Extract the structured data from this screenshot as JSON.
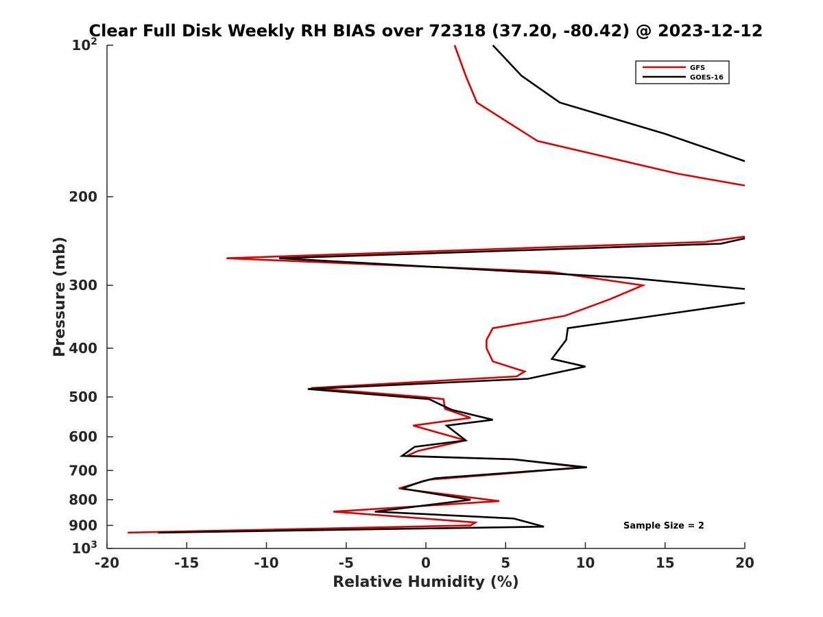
{
  "chart_data": {
    "type": "line",
    "title": "Clear Full Disk Weekly RH BIAS over 72318 (37.20, -80.42) @ 2023-12-12",
    "xlabel": "Relative Humidity (%)",
    "ylabel": "Pressure (mb)",
    "xlim": [
      -20,
      20
    ],
    "ylim": [
      1000,
      100
    ],
    "yscale": "log",
    "grid": false,
    "legend_position": "top-right",
    "x_ticks": [
      "-20",
      "-15",
      "-10",
      "-5",
      "0",
      "5",
      "10",
      "15",
      "20"
    ],
    "y_ticks": [
      {
        "value": 100,
        "label": "10",
        "sup": "2"
      },
      {
        "value": 200,
        "label": "200"
      },
      {
        "value": 300,
        "label": "300"
      },
      {
        "value": 400,
        "label": "400"
      },
      {
        "value": 500,
        "label": "500"
      },
      {
        "value": 600,
        "label": "600"
      },
      {
        "value": 700,
        "label": "700"
      },
      {
        "value": 800,
        "label": "800"
      },
      {
        "value": 900,
        "label": "900"
      },
      {
        "value": 1000,
        "label": "10",
        "sup": "3"
      }
    ],
    "annotation": "Sample Size = 2",
    "series": [
      {
        "name": "GFS",
        "color": "#e00000",
        "points": [
          [
            1.8,
            100
          ],
          [
            2.5,
            115
          ],
          [
            3.2,
            130
          ],
          [
            7.0,
            155
          ],
          [
            15.8,
            180
          ],
          [
            20,
            190
          ],
          [
            null,
            null
          ],
          [
            20,
            240
          ],
          [
            17.5,
            246
          ],
          [
            -12.5,
            265
          ],
          [
            7.8,
            282
          ],
          [
            13.6,
            300
          ],
          [
            11.5,
            320
          ],
          [
            8.7,
            345
          ],
          [
            4.2,
            365
          ],
          [
            3.8,
            385
          ],
          [
            3.8,
            400
          ],
          [
            4.2,
            425
          ],
          [
            6.2,
            445
          ],
          [
            5.7,
            455
          ],
          [
            -7.2,
            480
          ],
          [
            -0.2,
            500
          ],
          [
            1.1,
            505
          ],
          [
            1.2,
            528
          ],
          [
            2.8,
            550
          ],
          [
            -0.8,
            570
          ],
          [
            2.5,
            610
          ],
          [
            -0.5,
            640
          ],
          [
            -1.2,
            655
          ],
          [
            5.5,
            665
          ],
          [
            9.8,
            690
          ],
          [
            6.2,
            705
          ],
          [
            0.2,
            730
          ],
          [
            -1.7,
            760
          ],
          [
            4.6,
            805
          ],
          [
            -5.8,
            845
          ],
          [
            3.1,
            888
          ],
          [
            2.8,
            900
          ],
          [
            -18.7,
            930
          ]
        ]
      },
      {
        "name": "GOES-16",
        "color": "#000000",
        "points": [
          [
            4.2,
            100
          ],
          [
            6.0,
            115
          ],
          [
            8.4,
            130
          ],
          [
            15.0,
            150
          ],
          [
            20,
            170
          ],
          [
            null,
            null
          ],
          [
            20,
            242
          ],
          [
            18.5,
            248
          ],
          [
            -9.2,
            265
          ],
          [
            12.8,
            290
          ],
          [
            20,
            305
          ],
          [
            null,
            null
          ],
          [
            20,
            325
          ],
          [
            15.7,
            340
          ],
          [
            8.9,
            365
          ],
          [
            8.8,
            385
          ],
          [
            7.9,
            420
          ],
          [
            10.0,
            435
          ],
          [
            6.4,
            460
          ],
          [
            -7.4,
            482
          ],
          [
            0.2,
            505
          ],
          [
            1.6,
            530
          ],
          [
            4.2,
            555
          ],
          [
            1.3,
            570
          ],
          [
            2.5,
            610
          ],
          [
            -0.7,
            628
          ],
          [
            -1.5,
            655
          ],
          [
            5.5,
            665
          ],
          [
            10.1,
            690
          ],
          [
            7.2,
            700
          ],
          [
            0.6,
            725
          ],
          [
            -0.2,
            735
          ],
          [
            -1.5,
            760
          ],
          [
            2.8,
            800
          ],
          [
            -3.2,
            845
          ],
          [
            5.5,
            872
          ],
          [
            7.4,
            905
          ],
          [
            -16.8,
            930
          ]
        ]
      }
    ]
  }
}
